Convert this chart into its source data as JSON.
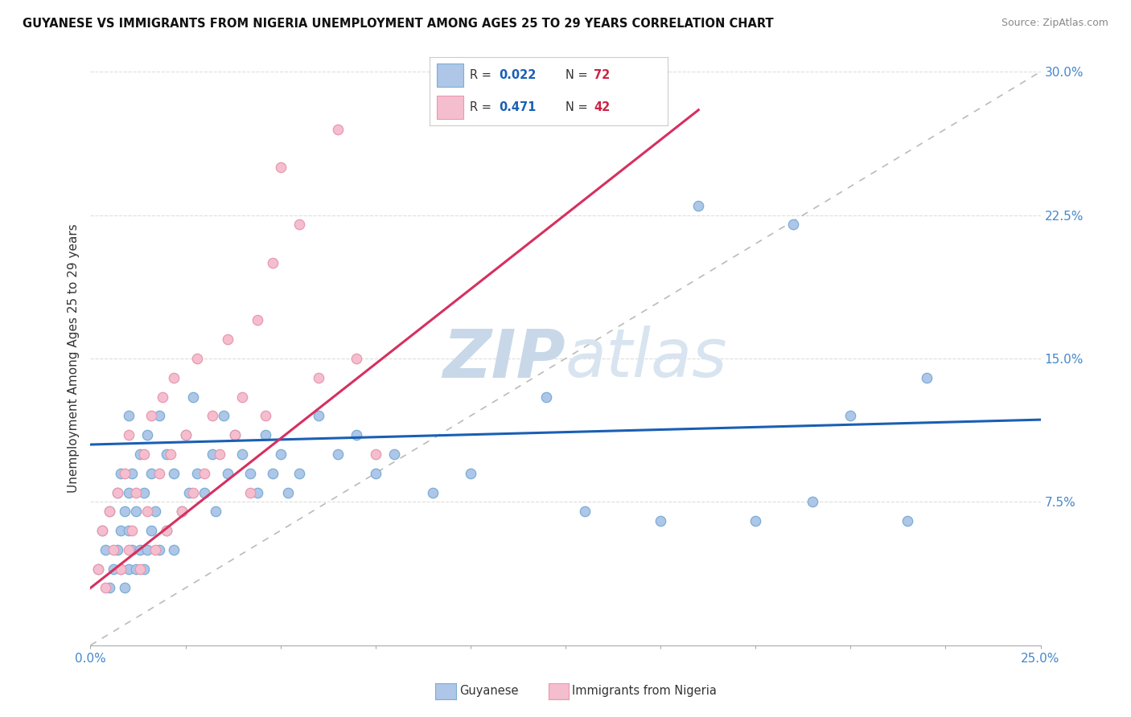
{
  "title": "GUYANESE VS IMMIGRANTS FROM NIGERIA UNEMPLOYMENT AMONG AGES 25 TO 29 YEARS CORRELATION CHART",
  "source": "Source: ZipAtlas.com",
  "ylabel": "Unemployment Among Ages 25 to 29 years",
  "xlim": [
    0.0,
    0.25
  ],
  "ylim": [
    0.0,
    0.3
  ],
  "xticks": [
    0.0,
    0.025,
    0.05,
    0.075,
    0.1,
    0.125,
    0.15,
    0.175,
    0.2,
    0.225,
    0.25
  ],
  "xticklabels": [
    "0.0%",
    "",
    "",
    "",
    "",
    "",
    "",
    "",
    "",
    "",
    "25.0%"
  ],
  "ytick_positions": [
    0.075,
    0.15,
    0.225,
    0.3
  ],
  "ytick_labels": [
    "7.5%",
    "15.0%",
    "22.5%",
    "30.0%"
  ],
  "blue_color": "#aec6e8",
  "blue_edge": "#7aafd4",
  "pink_color": "#f5bece",
  "pink_edge": "#e899b0",
  "blue_line_color": "#1a5fb4",
  "pink_line_color": "#d63060",
  "ref_line_color": "#bbbbbb",
  "watermark_color": "#c8d8e8",
  "legend_r_color": "#1a5fb4",
  "legend_n_color": "#cc2244",
  "background_color": "#ffffff",
  "grid_color": "#dddddd",
  "blue_scatter_x": [
    0.002,
    0.003,
    0.004,
    0.005,
    0.005,
    0.006,
    0.007,
    0.007,
    0.008,
    0.008,
    0.008,
    0.009,
    0.009,
    0.01,
    0.01,
    0.01,
    0.01,
    0.011,
    0.011,
    0.012,
    0.012,
    0.013,
    0.013,
    0.014,
    0.014,
    0.015,
    0.015,
    0.016,
    0.016,
    0.017,
    0.018,
    0.018,
    0.02,
    0.02,
    0.022,
    0.022,
    0.024,
    0.025,
    0.026,
    0.027,
    0.028,
    0.03,
    0.032,
    0.033,
    0.035,
    0.036,
    0.038,
    0.04,
    0.042,
    0.044,
    0.046,
    0.048,
    0.05,
    0.052,
    0.055,
    0.06,
    0.065,
    0.07,
    0.075,
    0.08,
    0.09,
    0.1,
    0.12,
    0.13,
    0.15,
    0.16,
    0.175,
    0.185,
    0.19,
    0.2,
    0.215,
    0.22
  ],
  "blue_scatter_y": [
    0.04,
    0.06,
    0.05,
    0.03,
    0.07,
    0.04,
    0.05,
    0.08,
    0.04,
    0.06,
    0.09,
    0.03,
    0.07,
    0.04,
    0.06,
    0.08,
    0.12,
    0.05,
    0.09,
    0.04,
    0.07,
    0.05,
    0.1,
    0.04,
    0.08,
    0.05,
    0.11,
    0.06,
    0.09,
    0.07,
    0.05,
    0.12,
    0.06,
    0.1,
    0.05,
    0.09,
    0.07,
    0.11,
    0.08,
    0.13,
    0.09,
    0.08,
    0.1,
    0.07,
    0.12,
    0.09,
    0.11,
    0.1,
    0.09,
    0.08,
    0.11,
    0.09,
    0.1,
    0.08,
    0.09,
    0.12,
    0.1,
    0.11,
    0.09,
    0.1,
    0.08,
    0.09,
    0.13,
    0.07,
    0.065,
    0.23,
    0.065,
    0.22,
    0.075,
    0.12,
    0.065,
    0.14
  ],
  "pink_scatter_x": [
    0.002,
    0.003,
    0.004,
    0.005,
    0.006,
    0.007,
    0.008,
    0.009,
    0.01,
    0.01,
    0.011,
    0.012,
    0.013,
    0.014,
    0.015,
    0.016,
    0.017,
    0.018,
    0.019,
    0.02,
    0.021,
    0.022,
    0.024,
    0.025,
    0.027,
    0.028,
    0.03,
    0.032,
    0.034,
    0.036,
    0.038,
    0.04,
    0.042,
    0.044,
    0.046,
    0.048,
    0.05,
    0.055,
    0.06,
    0.065,
    0.07,
    0.075
  ],
  "pink_scatter_y": [
    0.04,
    0.06,
    0.03,
    0.07,
    0.05,
    0.08,
    0.04,
    0.09,
    0.05,
    0.11,
    0.06,
    0.08,
    0.04,
    0.1,
    0.07,
    0.12,
    0.05,
    0.09,
    0.13,
    0.06,
    0.1,
    0.14,
    0.07,
    0.11,
    0.08,
    0.15,
    0.09,
    0.12,
    0.1,
    0.16,
    0.11,
    0.13,
    0.08,
    0.17,
    0.12,
    0.2,
    0.25,
    0.22,
    0.14,
    0.27,
    0.15,
    0.1
  ],
  "blue_line_y_at_0": 0.105,
  "blue_line_y_at_25": 0.118,
  "pink_line_y_at_0": 0.03,
  "pink_line_y_at_16": 0.28
}
